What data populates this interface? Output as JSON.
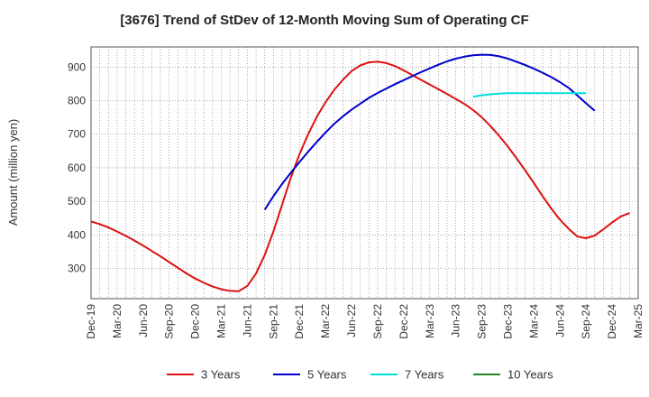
{
  "chart_data": {
    "type": "line",
    "title": "[3676]  Trend of StDev of 12-Month Moving Sum of Operating CF",
    "ylabel": "Amount (million yen)",
    "xlabel": "",
    "ylim": [
      210,
      960
    ],
    "yticks": [
      300,
      400,
      500,
      600,
      700,
      800,
      900
    ],
    "xticks": [
      "Dec-19",
      "Mar-20",
      "Jun-20",
      "Sep-20",
      "Dec-20",
      "Mar-21",
      "Jun-21",
      "Sep-21",
      "Dec-21",
      "Mar-22",
      "Jun-22",
      "Sep-22",
      "Dec-22",
      "Mar-23",
      "Jun-23",
      "Sep-23",
      "Dec-23",
      "Mar-24",
      "Jun-24",
      "Sep-24",
      "Dec-24",
      "Mar-25"
    ],
    "x_start": "2019-12",
    "grid": true,
    "legend_position": "bottom",
    "series": [
      {
        "name": "3 Years",
        "color": "#dd1111",
        "start": "2019-12",
        "values": [
          440,
          432,
          422,
          410,
          397,
          383,
          368,
          352,
          336,
          319,
          302,
          285,
          270,
          257,
          246,
          238,
          233,
          232,
          248,
          285,
          340,
          410,
          490,
          570,
          640,
          700,
          752,
          795,
          832,
          862,
          888,
          905,
          914,
          916,
          912,
          903,
          890,
          876,
          862,
          848,
          834,
          820,
          805,
          790,
          772,
          750,
          724,
          695,
          663,
          628,
          592,
          554,
          515,
          478,
          445,
          418,
          395,
          390,
          398,
          417,
          437,
          455,
          465
        ]
      },
      {
        "name": "5 Years",
        "color": "#0000cc",
        "start": "2021-08",
        "values": [
          475,
          515,
          552,
          585,
          617,
          648,
          677,
          705,
          731,
          753,
          773,
          791,
          808,
          823,
          836,
          849,
          861,
          873,
          885,
          896,
          907,
          917,
          925,
          931,
          935,
          937,
          936,
          932,
          925,
          916,
          906,
          895,
          883,
          870,
          855,
          838,
          815,
          792,
          770
        ]
      },
      {
        "name": "7 Years",
        "color": "#00dddd",
        "start": "2023-08",
        "values": [
          812,
          816,
          819,
          821,
          822,
          822,
          822,
          822,
          822,
          822,
          822,
          822,
          822,
          822
        ]
      },
      {
        "name": "10 Years",
        "color": "#228822",
        "start": "2019-12",
        "values": []
      }
    ]
  }
}
